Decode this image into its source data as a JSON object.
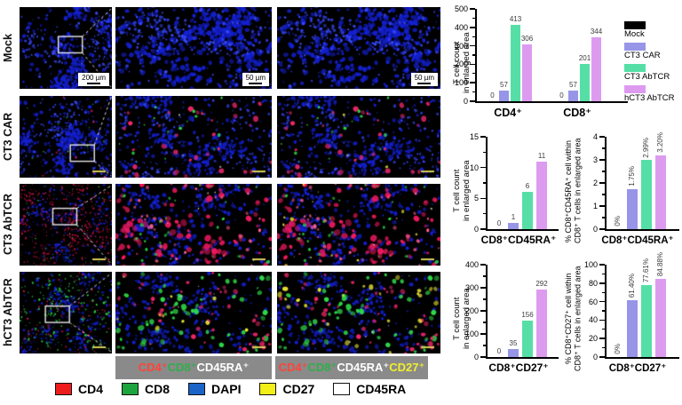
{
  "conditions": [
    {
      "name": "Mock",
      "color": "#000000"
    },
    {
      "name": "CT3 CAR",
      "color": "#9795e7"
    },
    {
      "name": "CT3 AbTCR",
      "color": "#55dfa6"
    },
    {
      "name": "hCT3 AbTCR",
      "color": "#dd9bf0"
    }
  ],
  "stain_legend": [
    {
      "label": "CD4",
      "color": "#ee1c1c"
    },
    {
      "label": "CD8",
      "color": "#1ea43e"
    },
    {
      "label": "DAPI",
      "color": "#1a64c8"
    },
    {
      "label": "CD27",
      "color": "#f2ee18"
    },
    {
      "label": "CD45RA",
      "color": "#ffffff"
    }
  ],
  "channel_bars": [
    {
      "segments": [
        {
          "text": "CD4⁺",
          "color": "#ff4438"
        },
        {
          "text": "CD8⁺",
          "color": "#2fae4a"
        },
        {
          "text": "CD45RA⁺",
          "color": "#ffffff"
        }
      ]
    },
    {
      "segments": [
        {
          "text": "CD4⁺",
          "color": "#ff4438"
        },
        {
          "text": "CD8⁺",
          "color": "#2fae4a"
        },
        {
          "text": "CD45RA⁺",
          "color": "#ffffff"
        },
        {
          "text": " CD27⁺",
          "color": "#f2ee2a"
        }
      ]
    }
  ],
  "microscopy": {
    "rows": [
      {
        "label": "Mock",
        "panels": [
          {
            "name": "mock-overview",
            "scale_label": "200 µm",
            "roi": {
              "x": 0.42,
              "y": 0.36,
              "w": 0.26,
              "h": 0.2
            },
            "layers": [
              {
                "c": "#1420d0",
                "n": 420,
                "r": [
                  0.8,
                  2.4
                ],
                "cl": 0.78,
                "k": 6
              },
              {
                "c": "#3748f8",
                "n": 170,
                "r": [
                  0.6,
                  1.6
                ],
                "cl": 0.75,
                "k": 6
              }
            ]
          },
          {
            "name": "mock-enlarged-1",
            "scale_label": "50 µm",
            "layers": [
              {
                "c": "#1420d0",
                "n": 520,
                "r": [
                  1.0,
                  3.0
                ],
                "cl": 0.62,
                "k": 9
              },
              {
                "c": "#3748f8",
                "n": 220,
                "r": [
                  0.8,
                  2.0
                ],
                "cl": 0.6,
                "k": 9
              }
            ]
          },
          {
            "name": "mock-enlarged-2",
            "scale_label": "50 µm",
            "layers": [
              {
                "c": "#1420d0",
                "n": 520,
                "r": [
                  1.0,
                  3.0
                ],
                "cl": 0.62,
                "k": 9
              },
              {
                "c": "#3748f8",
                "n": 220,
                "r": [
                  0.8,
                  2.0
                ],
                "cl": 0.6,
                "k": 9
              }
            ]
          }
        ]
      },
      {
        "label": "CT3 CAR",
        "panels": [
          {
            "name": "ct3car-overview",
            "minibar": true,
            "roi": {
              "x": 0.55,
              "y": 0.6,
              "w": 0.26,
              "h": 0.2
            },
            "layers": [
              {
                "c": "#1420d0",
                "n": 400,
                "r": [
                  0.7,
                  2.2
                ],
                "cl": 0.72,
                "k": 6
              },
              {
                "c": "#3748f8",
                "n": 150,
                "r": [
                  0.6,
                  1.5
                ],
                "cl": 0.7,
                "k": 6
              },
              {
                "c": "#e8175a",
                "n": 14,
                "r": [
                  0.6,
                  1.3
                ],
                "cl": 0.3,
                "k": 5
              },
              {
                "c": "#26c93e",
                "n": 10,
                "r": [
                  0.5,
                  1.1
                ],
                "cl": 0.3,
                "k": 5
              }
            ]
          },
          {
            "name": "ct3car-enlarged-1",
            "minibar": true,
            "layers": [
              {
                "c": "#1420d0",
                "n": 430,
                "r": [
                  0.8,
                  2.4
                ],
                "cl": 0.6,
                "k": 9
              },
              {
                "c": "#3748f8",
                "n": 160,
                "r": [
                  0.7,
                  1.8
                ],
                "cl": 0.6,
                "k": 9
              },
              {
                "c": "#f2276b",
                "n": 34,
                "r": [
                  1.4,
                  3.2
                ],
                "cl": 0.45,
                "k": 7
              },
              {
                "c": "#2bd64a",
                "n": 16,
                "r": [
                  0.9,
                  2.0
                ],
                "cl": 0.4,
                "k": 6
              },
              {
                "c": "#cccccc",
                "n": 3,
                "r": [
                  0.7,
                  1.2
                ],
                "cl": 0.3,
                "k": 4
              }
            ]
          },
          {
            "name": "ct3car-enlarged-2",
            "minibar": true,
            "layers": [
              {
                "c": "#1420d0",
                "n": 430,
                "r": [
                  0.8,
                  2.4
                ],
                "cl": 0.6,
                "k": 9
              },
              {
                "c": "#3748f8",
                "n": 160,
                "r": [
                  0.7,
                  1.8
                ],
                "cl": 0.6,
                "k": 9
              },
              {
                "c": "#f2276b",
                "n": 34,
                "r": [
                  1.4,
                  3.2
                ],
                "cl": 0.45,
                "k": 7
              },
              {
                "c": "#2bd64a",
                "n": 16,
                "r": [
                  0.9,
                  2.0
                ],
                "cl": 0.4,
                "k": 6
              },
              {
                "c": "#e8e23c",
                "n": 3,
                "r": [
                  0.9,
                  1.8
                ],
                "cl": 0.3,
                "k": 4
              }
            ]
          }
        ]
      },
      {
        "label": "CT3 AbTCR",
        "panels": [
          {
            "name": "ct3abtcr-overview",
            "minibar": true,
            "roi": {
              "x": 0.36,
              "y": 0.3,
              "w": 0.26,
              "h": 0.2
            },
            "layers": [
              {
                "c": "#1420d0",
                "n": 280,
                "r": [
                  0.5,
                  1.5
                ],
                "cl": 0.6,
                "k": 7
              },
              {
                "c": "#d8134e",
                "n": 520,
                "r": [
                  0.4,
                  1.1
                ],
                "cl": 0.55,
                "k": 8
              },
              {
                "c": "#26c93e",
                "n": 36,
                "r": [
                  0.4,
                  0.9
                ],
                "cl": 0.4,
                "k": 6
              }
            ]
          },
          {
            "name": "ct3abtcr-enlarged-1",
            "minibar": true,
            "layers": [
              {
                "c": "#1420d0",
                "n": 320,
                "r": [
                  0.8,
                  2.4
                ],
                "cl": 0.65,
                "k": 8
              },
              {
                "c": "#f0195e",
                "n": 95,
                "r": [
                  1.6,
                  3.6
                ],
                "cl": 0.5,
                "k": 8
              },
              {
                "c": "#ff5e8e",
                "n": 40,
                "r": [
                  1.2,
                  2.4
                ],
                "cl": 0.5,
                "k": 7
              },
              {
                "c": "#2bd64a",
                "n": 30,
                "r": [
                  0.9,
                  2.0
                ],
                "cl": 0.4,
                "k": 6
              },
              {
                "c": "#cccccc",
                "n": 8,
                "r": [
                  0.6,
                  1.2
                ],
                "cl": 0.3,
                "k": 4
              }
            ]
          },
          {
            "name": "ct3abtcr-enlarged-2",
            "minibar": true,
            "layers": [
              {
                "c": "#1420d0",
                "n": 320,
                "r": [
                  0.8,
                  2.4
                ],
                "cl": 0.65,
                "k": 8
              },
              {
                "c": "#f0195e",
                "n": 95,
                "r": [
                  1.6,
                  3.6
                ],
                "cl": 0.5,
                "k": 8
              },
              {
                "c": "#ff5e8e",
                "n": 40,
                "r": [
                  1.2,
                  2.4
                ],
                "cl": 0.5,
                "k": 7
              },
              {
                "c": "#2bd64a",
                "n": 30,
                "r": [
                  0.9,
                  2.0
                ],
                "cl": 0.4,
                "k": 6
              },
              {
                "c": "#eee832",
                "n": 10,
                "r": [
                  1.0,
                  2.2
                ],
                "cl": 0.4,
                "k": 5
              },
              {
                "c": "#cccccc",
                "n": 8,
                "r": [
                  0.6,
                  1.2
                ],
                "cl": 0.3,
                "k": 4
              }
            ]
          }
        ]
      },
      {
        "label": "hCT3 AbTCR",
        "panels": [
          {
            "name": "hct3abtcr-overview",
            "minibar": true,
            "roi": {
              "x": 0.28,
              "y": 0.42,
              "w": 0.26,
              "h": 0.2
            },
            "layers": [
              {
                "c": "#1420d0",
                "n": 300,
                "r": [
                  0.6,
                  1.8
                ],
                "cl": 0.68,
                "k": 7
              },
              {
                "c": "#2bd64a",
                "n": 190,
                "r": [
                  0.5,
                  1.3
                ],
                "cl": 0.5,
                "k": 9
              },
              {
                "c": "#e8175a",
                "n": 90,
                "r": [
                  0.5,
                  1.1
                ],
                "cl": 0.5,
                "k": 7
              }
            ]
          },
          {
            "name": "hct3abtcr-enlarged-1",
            "minibar": true,
            "layers": [
              {
                "c": "#1420d0",
                "n": 300,
                "r": [
                  0.8,
                  2.4
                ],
                "cl": 0.6,
                "k": 8
              },
              {
                "c": "#30dc4a",
                "n": 72,
                "r": [
                  1.5,
                  3.2
                ],
                "cl": 0.5,
                "k": 9
              },
              {
                "c": "#f2276b",
                "n": 55,
                "r": [
                  1.3,
                  2.8
                ],
                "cl": 0.5,
                "k": 8
              },
              {
                "c": "#eee832",
                "n": 10,
                "r": [
                  1.2,
                  2.4
                ],
                "cl": 0.4,
                "k": 5
              },
              {
                "c": "#cccccc",
                "n": 6,
                "r": [
                  0.6,
                  1.2
                ],
                "cl": 0.3,
                "k": 4
              }
            ]
          },
          {
            "name": "hct3abtcr-enlarged-2",
            "minibar": true,
            "layers": [
              {
                "c": "#1420d0",
                "n": 300,
                "r": [
                  0.8,
                  2.4
                ],
                "cl": 0.6,
                "k": 8
              },
              {
                "c": "#30dc4a",
                "n": 72,
                "r": [
                  1.5,
                  3.2
                ],
                "cl": 0.5,
                "k": 9
              },
              {
                "c": "#f2276b",
                "n": 55,
                "r": [
                  1.3,
                  2.8
                ],
                "cl": 0.5,
                "k": 8
              },
              {
                "c": "#eee832",
                "n": 26,
                "r": [
                  1.4,
                  2.8
                ],
                "cl": 0.45,
                "k": 6
              },
              {
                "c": "#cccccc",
                "n": 6,
                "r": [
                  0.6,
                  1.2
                ],
                "cl": 0.3,
                "k": 4
              }
            ]
          }
        ]
      }
    ]
  },
  "chart_data": [
    {
      "id": "t-cell-count-by-subset",
      "type": "bar",
      "ylabel": "T cell count\nin enlarged area",
      "ylim": [
        0,
        500
      ],
      "yticks": [
        "0",
        "100",
        "200",
        "300",
        "400",
        "500"
      ],
      "minor_ticks": true,
      "grid": false,
      "legend_position": "right",
      "series_names": [
        "Mock",
        "CT3 CAR",
        "CT3 AbTCR",
        "hCT3 AbTCR"
      ],
      "groups": [
        {
          "category": "CD4⁺",
          "values": [
            0,
            57,
            413,
            306
          ],
          "labels": [
            "0",
            "57",
            "413",
            "306"
          ]
        },
        {
          "category": "CD8⁺",
          "values": [
            0,
            57,
            201,
            344
          ],
          "labels": [
            "0",
            "57",
            "201",
            "344"
          ]
        }
      ],
      "rotate_value_labels": false,
      "legend": true
    },
    {
      "id": "t-cell-count-cd8-cd45ra",
      "type": "bar",
      "ylabel": "T cell count\nin enlarged area",
      "ylim": [
        0,
        15
      ],
      "yticks": [
        "0",
        "5",
        "10",
        "15"
      ],
      "minor_ticks": true,
      "grid": false,
      "series_names": [
        "Mock",
        "CT3 CAR",
        "CT3 AbTCR",
        "hCT3 AbTCR"
      ],
      "groups": [
        {
          "category": "CD8⁺CD45RA⁺",
          "values": [
            0,
            1,
            6,
            11
          ],
          "labels": [
            "0",
            "1",
            "6",
            "11"
          ]
        }
      ],
      "rotate_value_labels": false,
      "legend": false
    },
    {
      "id": "pct-cd8-cd45ra",
      "type": "bar",
      "ylabel": "% CD8⁺CD45RA⁺ cell within\nCD8⁺ T cells in enlarged area",
      "ylim": [
        0,
        4
      ],
      "yticks": [
        "0",
        "1",
        "2",
        "3",
        "4"
      ],
      "minor_ticks": true,
      "grid": false,
      "series_names": [
        "Mock",
        "CT3 CAR",
        "CT3 AbTCR",
        "hCT3 AbTCR"
      ],
      "groups": [
        {
          "category": "CD8⁺CD45RA⁺",
          "values": [
            0,
            1.75,
            2.99,
            3.2
          ],
          "labels": [
            "0%",
            "1.75%",
            "2.99%",
            "3.20%"
          ]
        }
      ],
      "rotate_value_labels": true,
      "legend": false
    },
    {
      "id": "t-cell-count-cd8-cd27",
      "type": "bar",
      "ylabel": "T cell count\nin enlarged area",
      "ylim": [
        0,
        400
      ],
      "yticks": [
        "0",
        "100",
        "200",
        "300",
        "400"
      ],
      "minor_ticks": true,
      "grid": false,
      "series_names": [
        "Mock",
        "CT3 CAR",
        "CT3 AbTCR",
        "hCT3 AbTCR"
      ],
      "groups": [
        {
          "category": "CD8⁺CD27⁺",
          "values": [
            0,
            35,
            156,
            292
          ],
          "labels": [
            "0",
            "35",
            "156",
            "292"
          ]
        }
      ],
      "rotate_value_labels": false,
      "legend": false
    },
    {
      "id": "pct-cd8-cd27",
      "type": "bar",
      "ylabel": "% CD8⁺CD27⁺ cell within\nCD8⁺ T cells in enlarged area",
      "ylim": [
        0,
        100
      ],
      "yticks": [
        "0",
        "20",
        "40",
        "60",
        "80",
        "100"
      ],
      "minor_ticks": true,
      "grid": false,
      "series_names": [
        "Mock",
        "CT3 CAR",
        "CT3 AbTCR",
        "hCT3 AbTCR"
      ],
      "groups": [
        {
          "category": "CD8⁺CD27⁺",
          "values": [
            0,
            61.4,
            77.61,
            84.88
          ],
          "labels": [
            "0%",
            "61.40%",
            "77.61%",
            "84.88%"
          ]
        }
      ],
      "rotate_value_labels": true,
      "legend": false
    }
  ]
}
